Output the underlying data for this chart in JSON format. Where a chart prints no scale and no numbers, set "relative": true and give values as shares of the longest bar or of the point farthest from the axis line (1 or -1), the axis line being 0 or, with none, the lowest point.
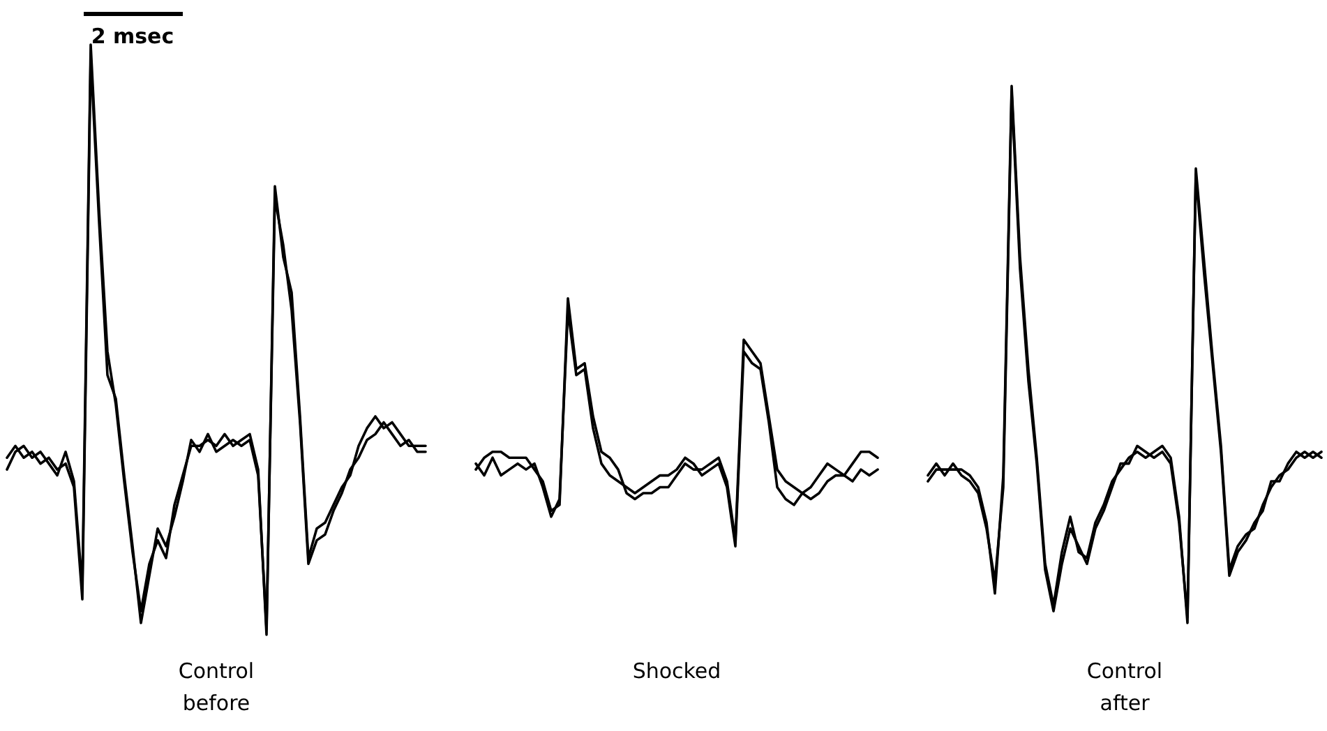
{
  "chart_data": {
    "type": "line",
    "relative": true,
    "categories": [
      null,
      null,
      null,
      null,
      null,
      null,
      null,
      null,
      null,
      null,
      null,
      null,
      null,
      null,
      null,
      null,
      null,
      null,
      null,
      null,
      null,
      null,
      null,
      null,
      null,
      null,
      null,
      null,
      null,
      null,
      null,
      null,
      null,
      null,
      null,
      null,
      null,
      null,
      null,
      null,
      null,
      null,
      null,
      null,
      null,
      null,
      null,
      null,
      null,
      null,
      null,
      null,
      null,
      null,
      null,
      null,
      null,
      null,
      null,
      null,
      null,
      null,
      null,
      null,
      null,
      null,
      null,
      null,
      null,
      null,
      null,
      null,
      null,
      null,
      null,
      null,
      null,
      null,
      null,
      null,
      null,
      null,
      null,
      null,
      null,
      null,
      null,
      null,
      null,
      null,
      null,
      null,
      null,
      null,
      null,
      null,
      null,
      null,
      null,
      null,
      null,
      null,
      null,
      null,
      null,
      null,
      null,
      null,
      null,
      null,
      null,
      null,
      null,
      null,
      null,
      null,
      null,
      null,
      null,
      null,
      null,
      null,
      null,
      null,
      null,
      null,
      null,
      null,
      null,
      null,
      null,
      null,
      null,
      null,
      null,
      null,
      null,
      null,
      null,
      null,
      null,
      null,
      null,
      null,
      null,
      null,
      null,
      null,
      null,
      null,
      null,
      null,
      null,
      null,
      null,
      null,
      null,
      null
    ],
    "series": [
      {
        "color": "#000000",
        "values": [
          0.28,
          0.31,
          0.32,
          0.3,
          0.31,
          0.29,
          0.27,
          0.31,
          0.26,
          0.08,
          1,
          0.72,
          0.48,
          0.39,
          0.26,
          0.14,
          0.04,
          0.12,
          0.16,
          0.13,
          0.22,
          0.27,
          0.32,
          0.32,
          0.33,
          0.32,
          0.34,
          0.32,
          0.33,
          0.34,
          0.28,
          0,
          0.76,
          0.64,
          0.58,
          0.37,
          0.13,
          0.18,
          0.19,
          0.22,
          0.25,
          0.27,
          0.32,
          0.35,
          0.37,
          0.35,
          0.36,
          0.34,
          0.32,
          0.32,
          0.32,
          null,
          null,
          null,
          null,
          null,
          null,
          null,
          null,
          null,
          null,
          null,
          null,
          null,
          null,
          null,
          null,
          null,
          null,
          null,
          null,
          null,
          null,
          null,
          null,
          null,
          null,
          null,
          null,
          null,
          null,
          null,
          null,
          null,
          null,
          null,
          null,
          null,
          null,
          null,
          null,
          null,
          null,
          null,
          null,
          null,
          null,
          null,
          null,
          null,
          null,
          null,
          null,
          null,
          null,
          null,
          null,
          null,
          null,
          null,
          null,
          null,
          null,
          null,
          null,
          null,
          null,
          null,
          null,
          null,
          null,
          null,
          null,
          null,
          null,
          null,
          null,
          null,
          null,
          null,
          null,
          null,
          null,
          null,
          null,
          null,
          null,
          null,
          null,
          null,
          null,
          null,
          null,
          null,
          null,
          null,
          null,
          null,
          null,
          null,
          null,
          null,
          null,
          null,
          null,
          null,
          null,
          null
        ]
      },
      {
        "color": "#000000",
        "values": [
          0.3,
          0.32,
          0.3,
          0.31,
          0.29,
          0.3,
          0.28,
          0.29,
          0.25,
          0.06,
          0.98,
          0.7,
          0.44,
          0.4,
          0.27,
          0.15,
          0.02,
          0.1,
          0.18,
          0.15,
          0.2,
          0.26,
          0.33,
          0.31,
          0.34,
          0.31,
          0.32,
          0.33,
          0.32,
          0.33,
          0.27,
          0.01,
          0.74,
          0.66,
          0.55,
          0.36,
          0.12,
          0.16,
          0.17,
          0.21,
          0.24,
          0.28,
          0.3,
          0.33,
          0.34,
          0.36,
          0.34,
          0.32,
          0.33,
          0.31,
          0.31,
          null,
          null,
          null,
          null,
          null,
          null,
          null,
          null,
          null,
          null,
          null,
          null,
          null,
          null,
          null,
          null,
          null,
          null,
          null,
          null,
          null,
          null,
          null,
          null,
          null,
          null,
          null,
          null,
          null,
          null,
          null,
          null,
          null,
          null,
          null,
          null,
          null,
          null,
          null,
          null,
          null,
          null,
          null,
          null,
          null,
          null,
          null,
          null,
          null,
          null,
          null,
          null,
          null,
          null,
          null,
          null,
          null,
          null,
          null,
          null,
          null,
          null,
          null,
          null,
          null,
          null,
          null,
          null,
          null,
          null,
          null,
          null,
          null,
          null,
          null,
          null,
          null,
          null,
          null,
          null,
          null,
          null,
          null,
          null,
          null,
          null,
          null,
          null,
          null,
          null,
          null,
          null,
          null,
          null,
          null,
          null,
          null,
          null,
          null,
          null,
          null,
          null,
          null,
          null,
          null,
          null,
          null
        ]
      },
      {
        "color": "#000000",
        "values": [
          null,
          null,
          null,
          null,
          null,
          null,
          null,
          null,
          null,
          null,
          null,
          null,
          null,
          null,
          null,
          null,
          null,
          null,
          null,
          null,
          null,
          null,
          null,
          null,
          null,
          null,
          null,
          null,
          null,
          null,
          null,
          null,
          null,
          null,
          null,
          null,
          null,
          null,
          null,
          null,
          null,
          null,
          null,
          null,
          null,
          null,
          null,
          null,
          null,
          null,
          null,
          null,
          null,
          null,
          null,
          null,
          0.28,
          0.3,
          0.31,
          0.31,
          0.3,
          0.3,
          0.3,
          0.28,
          0.26,
          0.21,
          0.22,
          0.57,
          0.45,
          0.46,
          0.37,
          0.31,
          0.3,
          0.28,
          0.24,
          0.23,
          0.24,
          0.24,
          0.25,
          0.25,
          0.27,
          0.29,
          0.28,
          0.28,
          0.29,
          0.3,
          0.26,
          0.16,
          0.5,
          0.48,
          0.46,
          0.37,
          0.28,
          0.26,
          0.25,
          0.24,
          0.23,
          0.24,
          0.26,
          0.27,
          0.27,
          0.29,
          0.31,
          0.31,
          0.3,
          null,
          null,
          null,
          null,
          null,
          null,
          null,
          null,
          null,
          null,
          null,
          null,
          null,
          null,
          null,
          null,
          null,
          null,
          null,
          null,
          null,
          null,
          null,
          null,
          null,
          null,
          null,
          null,
          null,
          null,
          null,
          null,
          null,
          null,
          null,
          null,
          null,
          null,
          null,
          null,
          null,
          null,
          null,
          null,
          null,
          null,
          null,
          null,
          null,
          null,
          null,
          null,
          null
        ]
      },
      {
        "color": "#000000",
        "values": [
          null,
          null,
          null,
          null,
          null,
          null,
          null,
          null,
          null,
          null,
          null,
          null,
          null,
          null,
          null,
          null,
          null,
          null,
          null,
          null,
          null,
          null,
          null,
          null,
          null,
          null,
          null,
          null,
          null,
          null,
          null,
          null,
          null,
          null,
          null,
          null,
          null,
          null,
          null,
          null,
          null,
          null,
          null,
          null,
          null,
          null,
          null,
          null,
          null,
          null,
          null,
          null,
          null,
          null,
          null,
          null,
          0.29,
          0.27,
          0.3,
          0.27,
          0.28,
          0.29,
          0.28,
          0.29,
          0.25,
          0.2,
          0.23,
          0.55,
          0.44,
          0.45,
          0.35,
          0.29,
          0.27,
          0.26,
          0.25,
          0.24,
          0.25,
          0.26,
          0.27,
          0.27,
          0.28,
          0.3,
          0.29,
          0.27,
          0.28,
          0.29,
          0.25,
          0.15,
          0.48,
          0.46,
          0.45,
          0.36,
          0.25,
          0.23,
          0.22,
          0.24,
          0.25,
          0.27,
          0.29,
          0.28,
          0.27,
          0.26,
          0.28,
          0.27,
          0.28,
          null,
          null,
          null,
          null,
          null,
          null,
          null,
          null,
          null,
          null,
          null,
          null,
          null,
          null,
          null,
          null,
          null,
          null,
          null,
          null,
          null,
          null,
          null,
          null,
          null,
          null,
          null,
          null,
          null,
          null,
          null,
          null,
          null,
          null,
          null,
          null,
          null,
          null,
          null,
          null,
          null,
          null,
          null,
          null,
          null,
          null,
          null,
          null,
          null,
          null,
          null,
          null,
          null
        ]
      },
      {
        "color": "#000000",
        "values": [
          null,
          null,
          null,
          null,
          null,
          null,
          null,
          null,
          null,
          null,
          null,
          null,
          null,
          null,
          null,
          null,
          null,
          null,
          null,
          null,
          null,
          null,
          null,
          null,
          null,
          null,
          null,
          null,
          null,
          null,
          null,
          null,
          null,
          null,
          null,
          null,
          null,
          null,
          null,
          null,
          null,
          null,
          null,
          null,
          null,
          null,
          null,
          null,
          null,
          null,
          null,
          null,
          null,
          null,
          null,
          null,
          null,
          null,
          null,
          null,
          null,
          null,
          null,
          null,
          null,
          null,
          null,
          null,
          null,
          null,
          null,
          null,
          null,
          null,
          null,
          null,
          null,
          null,
          null,
          null,
          null,
          null,
          null,
          null,
          null,
          null,
          null,
          null,
          null,
          null,
          null,
          null,
          null,
          null,
          null,
          null,
          null,
          null,
          null,
          null,
          null,
          null,
          null,
          null,
          null,
          null,
          null,
          null,
          null,
          null,
          0.26,
          0.28,
          0.28,
          0.28,
          0.28,
          0.27,
          0.25,
          0.19,
          0.07,
          0.27,
          0.93,
          0.64,
          0.45,
          0.3,
          0.12,
          0.05,
          0.14,
          0.2,
          0.14,
          0.13,
          0.19,
          0.22,
          0.26,
          0.28,
          0.3,
          0.31,
          0.3,
          0.31,
          0.32,
          0.3,
          0.2,
          0.02,
          0.79,
          0.63,
          0.47,
          0.32,
          0.11,
          0.15,
          0.17,
          0.18,
          0.22,
          0.25,
          0.27,
          0.28,
          0.3,
          0.31,
          0.3,
          0.31
        ]
      },
      {
        "color": "#000000",
        "values": [
          null,
          null,
          null,
          null,
          null,
          null,
          null,
          null,
          null,
          null,
          null,
          null,
          null,
          null,
          null,
          null,
          null,
          null,
          null,
          null,
          null,
          null,
          null,
          null,
          null,
          null,
          null,
          null,
          null,
          null,
          null,
          null,
          null,
          null,
          null,
          null,
          null,
          null,
          null,
          null,
          null,
          null,
          null,
          null,
          null,
          null,
          null,
          null,
          null,
          null,
          null,
          null,
          null,
          null,
          null,
          null,
          null,
          null,
          null,
          null,
          null,
          null,
          null,
          null,
          null,
          null,
          null,
          null,
          null,
          null,
          null,
          null,
          null,
          null,
          null,
          null,
          null,
          null,
          null,
          null,
          null,
          null,
          null,
          null,
          null,
          null,
          null,
          null,
          null,
          null,
          null,
          null,
          null,
          null,
          null,
          null,
          null,
          null,
          null,
          null,
          null,
          null,
          null,
          null,
          null,
          null,
          null,
          null,
          null,
          null,
          0.27,
          0.29,
          0.27,
          0.29,
          0.27,
          0.26,
          0.24,
          0.18,
          0.09,
          0.25,
          0.92,
          0.62,
          0.43,
          0.29,
          0.11,
          0.04,
          0.12,
          0.18,
          0.15,
          0.12,
          0.18,
          0.21,
          0.25,
          0.29,
          0.29,
          0.32,
          0.31,
          0.3,
          0.31,
          0.29,
          0.19,
          0.03,
          0.78,
          0.61,
          0.46,
          0.31,
          0.1,
          0.14,
          0.16,
          0.19,
          0.21,
          0.26,
          0.26,
          0.29,
          0.31,
          0.3,
          0.31,
          0.3
        ]
      }
    ],
    "annotations": [
      "2 msec",
      "Control before",
      "Shocked",
      "Control after"
    ]
  }
}
